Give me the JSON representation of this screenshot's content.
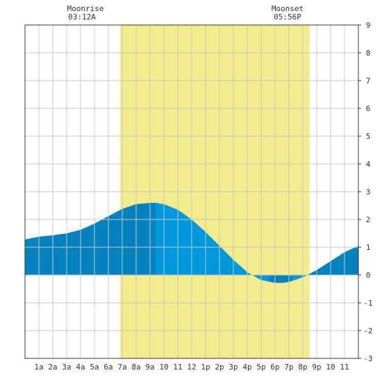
{
  "moon": {
    "rise_label": "Moonrise",
    "rise_time": "03:12A",
    "set_label": "Moonset",
    "set_time": "05:56P"
  },
  "chart_data": {
    "type": "area",
    "title": "",
    "xlabel": "",
    "ylabel": "",
    "xlim": [
      0,
      24
    ],
    "ylim": [
      -3,
      9
    ],
    "grid": true,
    "x_tick_labels": [
      "1a",
      "2a",
      "3a",
      "4a",
      "5a",
      "6a",
      "7a",
      "8a",
      "9a",
      "10",
      "11",
      "12",
      "1p",
      "2p",
      "3p",
      "4p",
      "5p",
      "6p",
      "7p",
      "8p",
      "9p",
      "10",
      "11"
    ],
    "x_ticks": [
      1,
      2,
      3,
      4,
      5,
      6,
      7,
      8,
      9,
      10,
      11,
      12,
      13,
      14,
      15,
      16,
      17,
      18,
      19,
      20,
      21,
      22,
      23
    ],
    "y_ticks": [
      -3,
      -2,
      -1,
      0,
      1,
      2,
      3,
      4,
      5,
      6,
      7,
      8,
      9
    ],
    "daylight": {
      "start": 6.85,
      "end": 20.5,
      "color": "#f2ec8c"
    },
    "series": [
      {
        "x": [
          0,
          1,
          2,
          3,
          4,
          5,
          6,
          7,
          8,
          9,
          9.4,
          10,
          11,
          12,
          13,
          14,
          15,
          16,
          17,
          18,
          18.6,
          19,
          20,
          21,
          22,
          23,
          24
        ],
        "values": [
          1.28,
          1.38,
          1.43,
          1.5,
          1.63,
          1.85,
          2.12,
          2.38,
          2.55,
          2.6,
          2.6,
          2.55,
          2.35,
          2.0,
          1.55,
          1.05,
          0.55,
          0.1,
          -0.18,
          -0.28,
          -0.28,
          -0.25,
          -0.08,
          0.18,
          0.5,
          0.82,
          1.05
        ]
      }
    ],
    "colors": {
      "tide_day": "#0098dc",
      "tide_night": "#0282be",
      "grid": "#c8c8c8",
      "axis": "#333333"
    }
  }
}
